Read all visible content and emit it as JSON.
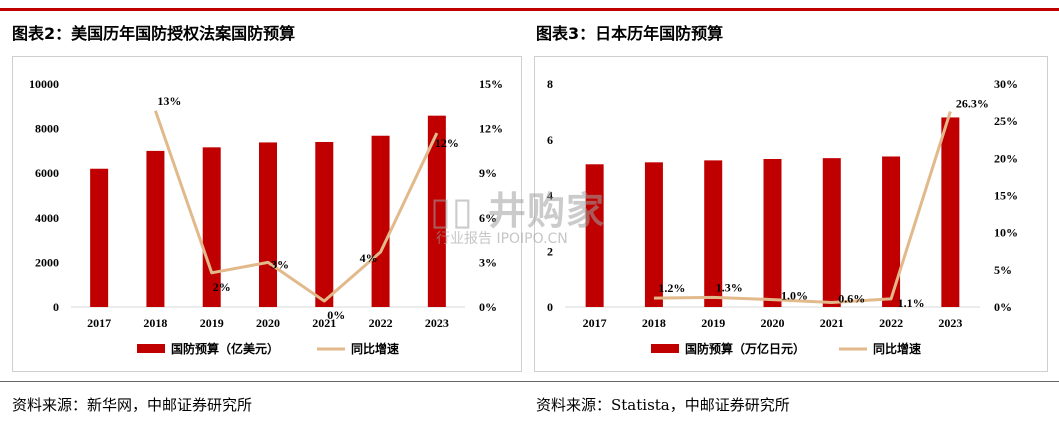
{
  "colors": {
    "accent": "#c00000",
    "bar": "#c00000",
    "line": "#e2b98a"
  },
  "left": {
    "title": "图表2：美国历年国防授权法案国防预算",
    "source": "资料来源：新华网，中邮证券研究所"
  },
  "right": {
    "title": "图表3：日本历年国防预算",
    "source": "资料来源：Statista，中邮证券研究所"
  },
  "watermark": {
    "mark": "▯▯ 井购家",
    "line": "行业报告 IPOIPO.CN"
  },
  "chart_data": [
    {
      "type": "bar",
      "categories": [
        "2017",
        "2018",
        "2019",
        "2020",
        "2021",
        "2022",
        "2023"
      ],
      "ylim": [
        0,
        10000
      ],
      "yticks": [
        "0",
        "2000",
        "4000",
        "6000",
        "8000",
        "10000"
      ],
      "y2lim": [
        0,
        15
      ],
      "y2ticks": [
        "0%",
        "3%",
        "6%",
        "9%",
        "12%",
        "15%"
      ],
      "series": [
        {
          "name": "国防预算（亿美元）",
          "type": "bar",
          "axis": "left",
          "values": [
            6200,
            7000,
            7160,
            7380,
            7400,
            7680,
            8580
          ]
        },
        {
          "name": "同比增速",
          "type": "line",
          "axis": "right",
          "x": [
            "2018",
            "2019",
            "2020",
            "2021",
            "2022",
            "2023"
          ],
          "values": [
            13.2,
            2.3,
            3.0,
            0.4,
            3.7,
            11.7
          ],
          "labels": [
            "13%",
            "2%",
            "3%",
            "0%",
            "4%",
            "12%"
          ]
        }
      ],
      "grid": false,
      "legend": "bottom"
    },
    {
      "type": "bar",
      "categories": [
        "2017",
        "2018",
        "2019",
        "2020",
        "2021",
        "2022",
        "2023"
      ],
      "ylim": [
        0,
        8
      ],
      "yticks": [
        "0",
        "2",
        "4",
        "6",
        "8"
      ],
      "y2lim": [
        0,
        30
      ],
      "y2ticks": [
        "0%",
        "5%",
        "10%",
        "15%",
        "20%",
        "25%",
        "30%"
      ],
      "series": [
        {
          "name": "国防预算（万亿日元）",
          "type": "bar",
          "axis": "left",
          "values": [
            5.12,
            5.19,
            5.26,
            5.31,
            5.34,
            5.4,
            6.8
          ]
        },
        {
          "name": "同比增速",
          "type": "line",
          "axis": "right",
          "x": [
            "2018",
            "2019",
            "2020",
            "2021",
            "2022",
            "2023"
          ],
          "values": [
            1.2,
            1.3,
            1.0,
            0.6,
            1.1,
            26.3
          ],
          "labels": [
            "1.2%",
            "1.3%",
            "1.0%",
            "0.6%",
            "1.1%",
            "26.3%"
          ]
        }
      ],
      "grid": false,
      "legend": "bottom"
    }
  ]
}
